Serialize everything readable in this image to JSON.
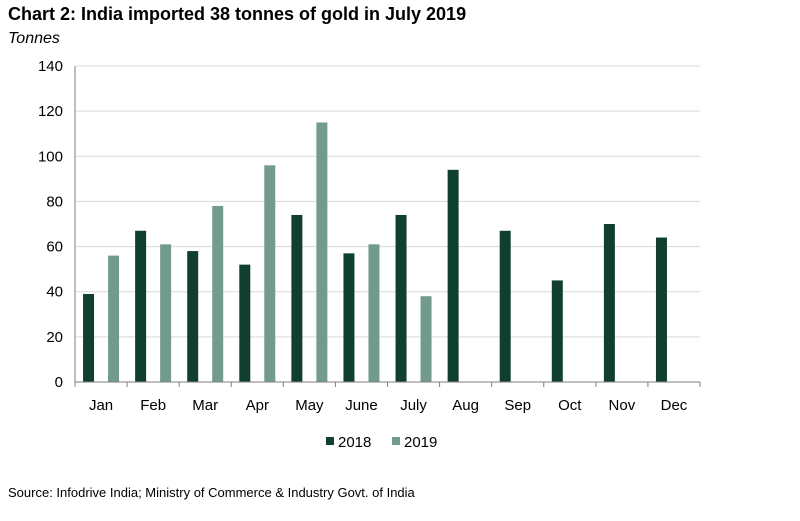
{
  "chart_data": {
    "type": "bar",
    "title": "Chart 2: India imported 38 tonnes of gold in July 2019",
    "ylabel": "Tonnes",
    "xlabel": "",
    "categories": [
      "Jan",
      "Feb",
      "Mar",
      "Apr",
      "May",
      "June",
      "July",
      "Aug",
      "Sep",
      "Oct",
      "Nov",
      "Dec"
    ],
    "series": [
      {
        "name": "2018",
        "color": "#10402d",
        "values": [
          39,
          67,
          58,
          52,
          74,
          57,
          74,
          94,
          67,
          45,
          70,
          64
        ]
      },
      {
        "name": "2019",
        "color": "#729b8c",
        "values": [
          56,
          61,
          78,
          96,
          115,
          61,
          38,
          null,
          null,
          null,
          null,
          null
        ]
      }
    ],
    "ylim": [
      0,
      140
    ],
    "yticks": [
      0,
      20,
      40,
      60,
      80,
      100,
      120,
      140
    ],
    "grid": true,
    "legend_position": "bottom-center"
  },
  "source": "Source: Infodrive India; Ministry of Commerce &  Industry Govt. of India"
}
